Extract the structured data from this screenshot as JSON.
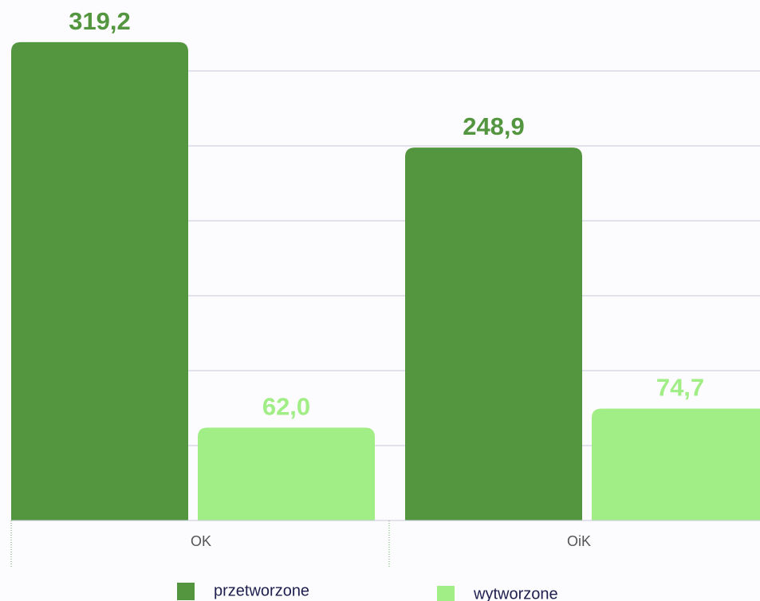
{
  "chart_data": {
    "type": "bar",
    "categories": [
      "OK",
      "OiK"
    ],
    "series": [
      {
        "name": "przetworzone",
        "color": "#54963f",
        "values": [
          319.2,
          248.9
        ],
        "value_labels": [
          "319,2",
          "248,9"
        ]
      },
      {
        "name": "wytworzone",
        "color": "#a1ed86",
        "values": [
          62.0,
          74.7
        ],
        "value_labels": [
          "62,0",
          "74,7"
        ]
      }
    ],
    "ylim": [
      0,
      350
    ],
    "yticks": [
      0,
      50,
      100,
      150,
      200,
      250,
      300
    ],
    "grid": true
  }
}
